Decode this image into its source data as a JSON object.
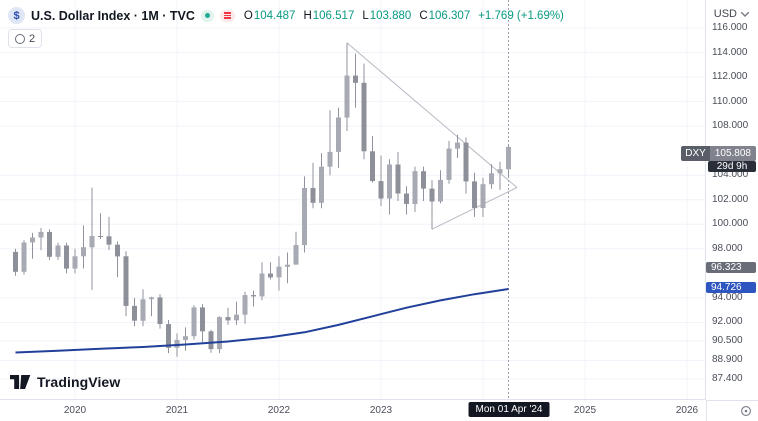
{
  "header": {
    "symbol_logo_glyph": "$",
    "symbol_title": "U.S. Dollar Index · 1M · TVC",
    "ohlc": {
      "o_label": "O",
      "o": "104.487",
      "h_label": "H",
      "h": "106.517",
      "l_label": "L",
      "l": "103.880",
      "c_label": "C",
      "c": "106.307",
      "change": "+1.769 (+1.69%)"
    },
    "indicator_count": "2",
    "currency": "USD"
  },
  "brand": {
    "name": "TradingView"
  },
  "colors": {
    "up_green": "#089981",
    "candle_gray": "#9598a1",
    "ma_blue": "#21409a",
    "badge_blue": "#2e55c0",
    "badge_gray": "#696d78",
    "symbol_badge_gray": "#80838d",
    "countdown_bg": "#2a2e39",
    "date_badge_bg": "#131722"
  },
  "price_axis": {
    "labels": [
      {
        "value": 116.0,
        "text": "116.000"
      },
      {
        "value": 114.0,
        "text": "114.000"
      },
      {
        "value": 112.0,
        "text": "112.000"
      },
      {
        "value": 110.0,
        "text": "110.000"
      },
      {
        "value": 108.0,
        "text": "108.000"
      },
      {
        "value": 104.0,
        "text": "104.000"
      },
      {
        "value": 102.0,
        "text": "102.000"
      },
      {
        "value": 100.0,
        "text": "100.000"
      },
      {
        "value": 98.0,
        "text": "98.000"
      },
      {
        "value": 94.0,
        "text": "94.000"
      },
      {
        "value": 92.0,
        "text": "92.000"
      },
      {
        "value": 90.5,
        "text": "90.500"
      },
      {
        "value": 88.9,
        "text": "88.900"
      },
      {
        "value": 87.4,
        "text": "87.400"
      }
    ],
    "symbol_badge": {
      "symbol": "DXY",
      "price": "105.808",
      "price_value": 105.808,
      "countdown": "29d 9h"
    },
    "gray_badge": {
      "text": "96.323",
      "value": 96.323
    },
    "blue_badge": {
      "text": "94.726",
      "value": 94.726
    }
  },
  "time_axis": {
    "years": [
      {
        "label": "2020",
        "month_index": 7
      },
      {
        "label": "2021",
        "month_index": 19
      },
      {
        "label": "2022",
        "month_index": 31
      },
      {
        "label": "2023",
        "month_index": 43
      },
      {
        "label": "2025",
        "month_index": 67
      },
      {
        "label": "2026",
        "month_index": 79
      }
    ],
    "date_badge": {
      "label": "Mon 01 Apr '24"
    }
  },
  "chart_data": {
    "type": "candlestick",
    "symbol": "DXY",
    "title": "U.S. Dollar Index",
    "interval": "1M",
    "exchange": "TVC",
    "current_ohlc": {
      "open": 104.487,
      "high": 106.517,
      "low": 103.88,
      "close": 106.307,
      "change": 1.769,
      "change_pct": 1.69
    },
    "ylim": [
      86.0,
      118.28
    ],
    "legend_position": "none",
    "grid": true,
    "candles": [
      [
        "2019-06",
        97.75,
        98.0,
        95.8,
        96.13
      ],
      [
        "2019-07",
        96.13,
        98.7,
        95.9,
        98.52
      ],
      [
        "2019-08",
        98.52,
        99.3,
        97.2,
        98.92
      ],
      [
        "2019-09",
        98.92,
        99.7,
        97.9,
        99.38
      ],
      [
        "2019-10",
        99.38,
        99.6,
        97.1,
        97.35
      ],
      [
        "2019-11",
        97.35,
        98.5,
        97.1,
        98.27
      ],
      [
        "2019-12",
        98.27,
        98.5,
        96.0,
        96.39
      ],
      [
        "2020-01",
        96.39,
        98.0,
        96.0,
        97.39
      ],
      [
        "2020-02",
        97.39,
        99.9,
        96.4,
        98.13
      ],
      [
        "2020-03",
        98.13,
        102.99,
        94.65,
        99.05
      ],
      [
        "2020-04",
        99.05,
        100.9,
        98.8,
        99.02
      ],
      [
        "2020-05",
        99.02,
        100.6,
        97.9,
        98.34
      ],
      [
        "2020-06",
        98.34,
        98.6,
        95.7,
        97.39
      ],
      [
        "2020-07",
        97.39,
        97.8,
        92.5,
        93.35
      ],
      [
        "2020-08",
        93.35,
        94.0,
        91.7,
        92.14
      ],
      [
        "2020-09",
        92.14,
        94.7,
        91.7,
        93.89
      ],
      [
        "2020-10",
        93.89,
        94.1,
        92.5,
        94.04
      ],
      [
        "2020-11",
        94.04,
        94.3,
        91.5,
        91.87
      ],
      [
        "2020-12",
        91.87,
        92.2,
        89.5,
        89.94
      ],
      [
        "2021-01",
        89.94,
        91.1,
        89.21,
        90.58
      ],
      [
        "2021-02",
        90.58,
        91.6,
        89.7,
        90.88
      ],
      [
        "2021-03",
        90.88,
        93.4,
        90.6,
        93.23
      ],
      [
        "2021-04",
        93.23,
        93.5,
        90.4,
        91.28
      ],
      [
        "2021-05",
        91.28,
        91.4,
        89.53,
        89.83
      ],
      [
        "2021-06",
        89.83,
        92.5,
        89.5,
        92.44
      ],
      [
        "2021-07",
        92.44,
        93.2,
        91.8,
        92.17
      ],
      [
        "2021-08",
        92.17,
        93.7,
        91.8,
        92.63
      ],
      [
        "2021-09",
        92.63,
        94.5,
        91.9,
        94.23
      ],
      [
        "2021-10",
        94.23,
        94.6,
        93.3,
        94.12
      ],
      [
        "2021-11",
        94.12,
        96.9,
        93.8,
        95.99
      ],
      [
        "2021-12",
        95.99,
        96.9,
        95.5,
        95.67
      ],
      [
        "2022-01",
        95.67,
        97.4,
        94.6,
        96.54
      ],
      [
        "2022-02",
        96.54,
        97.7,
        95.2,
        96.71
      ],
      [
        "2022-03",
        96.71,
        99.4,
        96.7,
        98.31
      ],
      [
        "2022-04",
        98.31,
        103.9,
        97.7,
        102.96
      ],
      [
        "2022-05",
        102.96,
        105.0,
        101.3,
        101.75
      ],
      [
        "2022-06",
        101.75,
        105.8,
        101.3,
        104.69
      ],
      [
        "2022-07",
        104.69,
        109.3,
        104.0,
        105.9
      ],
      [
        "2022-08",
        105.9,
        109.5,
        104.6,
        108.7
      ],
      [
        "2022-09",
        108.7,
        114.78,
        107.6,
        112.12
      ],
      [
        "2022-10",
        112.12,
        113.9,
        109.5,
        111.53
      ],
      [
        "2022-11",
        111.53,
        113.1,
        105.3,
        105.95
      ],
      [
        "2022-12",
        105.95,
        107.2,
        103.4,
        103.52
      ],
      [
        "2023-01",
        103.52,
        105.6,
        101.5,
        102.1
      ],
      [
        "2023-02",
        102.1,
        105.3,
        100.8,
        104.87
      ],
      [
        "2023-03",
        104.87,
        105.9,
        101.9,
        102.51
      ],
      [
        "2023-04",
        102.51,
        103.1,
        100.8,
        101.66
      ],
      [
        "2023-05",
        101.66,
        104.7,
        101.0,
        104.33
      ],
      [
        "2023-06",
        104.33,
        104.7,
        101.9,
        102.91
      ],
      [
        "2023-07",
        102.91,
        103.6,
        99.6,
        101.86
      ],
      [
        "2023-08",
        101.86,
        104.4,
        101.7,
        103.62
      ],
      [
        "2023-09",
        103.62,
        106.8,
        103.3,
        106.17
      ],
      [
        "2023-10",
        106.17,
        107.3,
        105.4,
        106.66
      ],
      [
        "2023-11",
        106.66,
        107.1,
        102.5,
        103.5
      ],
      [
        "2023-12",
        103.5,
        104.2,
        100.6,
        101.33
      ],
      [
        "2024-01",
        101.33,
        103.8,
        100.6,
        103.27
      ],
      [
        "2024-02",
        103.27,
        104.9,
        102.9,
        104.16
      ],
      [
        "2024-03",
        104.16,
        105.1,
        102.8,
        104.49
      ],
      [
        "2024-04",
        104.487,
        106.517,
        103.88,
        106.307
      ]
    ],
    "ma_line": {
      "name": "moving-average",
      "color": "#21409a",
      "last_value": 94.726,
      "points": [
        [
          0,
          89.55
        ],
        [
          5,
          89.7
        ],
        [
          10,
          89.85
        ],
        [
          15,
          90.0
        ],
        [
          20,
          90.2
        ],
        [
          25,
          90.45
        ],
        [
          30,
          90.8
        ],
        [
          34,
          91.2
        ],
        [
          38,
          91.8
        ],
        [
          42,
          92.5
        ],
        [
          46,
          93.2
        ],
        [
          50,
          93.8
        ],
        [
          54,
          94.3
        ],
        [
          58,
          94.726
        ]
      ]
    },
    "trendlines": [
      {
        "from": [
          39,
          114.78
        ],
        "to": [
          59,
          103.0
        ]
      },
      {
        "from": [
          49,
          99.6
        ],
        "to": [
          59,
          103.0
        ]
      }
    ],
    "crosshair": {
      "month_index": 58,
      "date_label": "Mon 01 Apr '24"
    }
  }
}
